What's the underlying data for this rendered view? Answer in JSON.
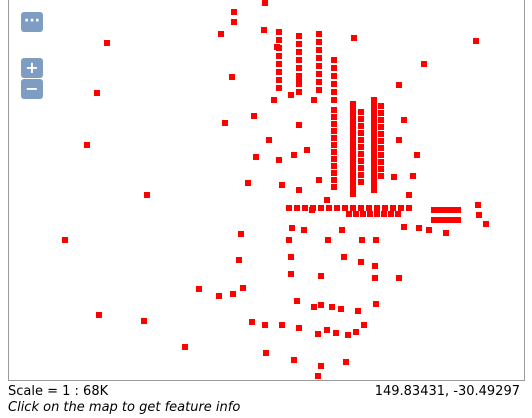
{
  "controls": {
    "menu": "···",
    "zoom_in": "+",
    "zoom_out": "−"
  },
  "status": {
    "scale": "Scale = 1 : 68K",
    "coordinates": "149.83431, -30.49297",
    "hint": "Click on the map to get feature info"
  }
}
